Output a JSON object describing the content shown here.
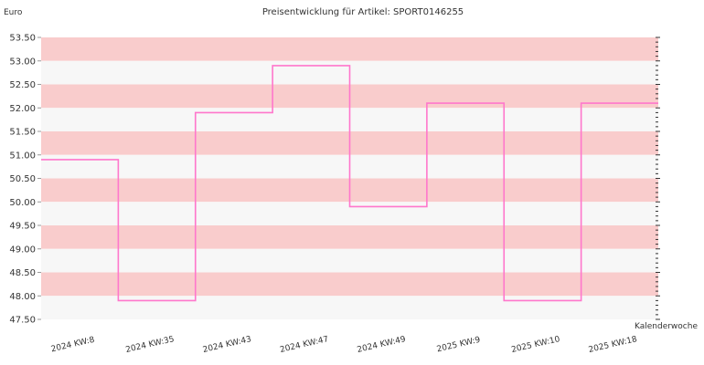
{
  "chart_data": {
    "type": "line",
    "title": "Preisentwicklung für Artikel: SPORT0146255",
    "ylabel": "Euro",
    "xlabel": "Kalenderwoche",
    "ylim": [
      47.5,
      53.5
    ],
    "y_ticks": [
      "53.50",
      "53.00",
      "52.50",
      "52.00",
      "51.50",
      "51.00",
      "50.50",
      "50.00",
      "49.50",
      "49.00",
      "48.50",
      "48.00",
      "47.50"
    ],
    "categories": [
      "2024 KW:8",
      "2024 KW:35",
      "2024 KW:43",
      "2024 KW:47",
      "2024 KW:49",
      "2025 KW:9",
      "2025 KW:10",
      "2025 KW:18"
    ],
    "step": true,
    "values": [
      50.9,
      47.9,
      51.9,
      52.9,
      49.9,
      52.1,
      47.9,
      52.1
    ],
    "line_color": "#ff77cc",
    "band_colors": [
      "#f9cccc",
      "#f7f7f7"
    ],
    "grid": true
  }
}
